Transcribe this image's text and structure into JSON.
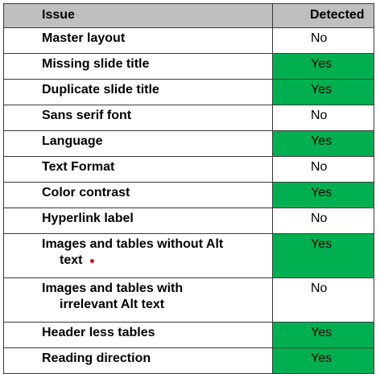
{
  "colors": {
    "header_bg": "#bfbfbf",
    "yes_bg": "#00b050",
    "marker": "#e01010"
  },
  "table": {
    "headers": {
      "issue": "Issue",
      "detected": "Detected"
    },
    "rows": [
      {
        "issue": "Master layout",
        "detected": "No"
      },
      {
        "issue": "Missing slide title",
        "detected": "Yes"
      },
      {
        "issue": "Duplicate slide title",
        "detected": "Yes"
      },
      {
        "issue": "Sans serif font",
        "detected": "No"
      },
      {
        "issue": "Language",
        "detected": "Yes"
      },
      {
        "issue": "Text Format",
        "detected": "No"
      },
      {
        "issue": "Color contrast",
        "detected": "Yes"
      },
      {
        "issue": "Hyperlink label",
        "detected": "No"
      },
      {
        "issue_line1": "Images and tables without Alt",
        "issue_line2": "text",
        "detected": "Yes"
      },
      {
        "issue_line1": "Images and tables with",
        "issue_line2": "irrelevant Alt text",
        "detected": "No"
      },
      {
        "issue": "Header less tables",
        "detected": "Yes"
      },
      {
        "issue": "Reading direction",
        "detected": "Yes"
      }
    ]
  }
}
